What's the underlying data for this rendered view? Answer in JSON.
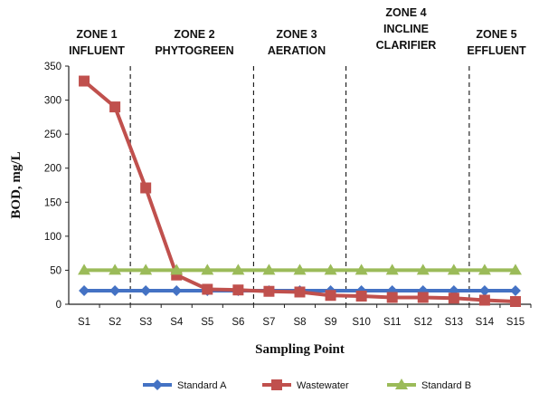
{
  "chart_data": {
    "type": "line",
    "xlabel": "Sampling Point",
    "ylabel": "BOD, mg/L",
    "ylim": [
      0,
      350
    ],
    "yticks": [
      0,
      50,
      100,
      150,
      200,
      250,
      300,
      350
    ],
    "categories": [
      "S1",
      "S2",
      "S3",
      "S4",
      "S5",
      "S6",
      "S7",
      "S8",
      "S9",
      "S10",
      "S11",
      "S12",
      "S13",
      "S14",
      "S15"
    ],
    "zones": [
      {
        "lines": [
          "ZONE 1",
          "INFLUENT"
        ]
      },
      {
        "lines": [
          "ZONE 2",
          "PHYTOGREEN"
        ]
      },
      {
        "lines": [
          "ZONE 3",
          "AERATION"
        ]
      },
      {
        "lines": [
          "ZONE 4",
          "INCLINE",
          "CLARIFIER"
        ]
      },
      {
        "lines": [
          "ZONE 5",
          "EFFLUENT"
        ]
      }
    ],
    "series": [
      {
        "name": "Standard A",
        "color": "#4472C4",
        "marker": "diamond",
        "values": [
          20,
          20,
          20,
          20,
          20,
          20,
          20,
          20,
          20,
          20,
          20,
          20,
          20,
          20,
          20
        ]
      },
      {
        "name": "Wastewater",
        "color": "#C0504D",
        "marker": "square",
        "values": [
          328,
          290,
          171,
          43,
          22,
          21,
          19,
          18,
          13,
          12,
          10,
          10,
          9,
          6,
          4
        ]
      },
      {
        "name": "Standard B",
        "color": "#9BBB59",
        "marker": "triangle",
        "values": [
          50,
          50,
          50,
          50,
          50,
          50,
          50,
          50,
          50,
          50,
          50,
          50,
          50,
          50,
          50
        ]
      }
    ],
    "grid": false,
    "legend_position": "bottom"
  }
}
